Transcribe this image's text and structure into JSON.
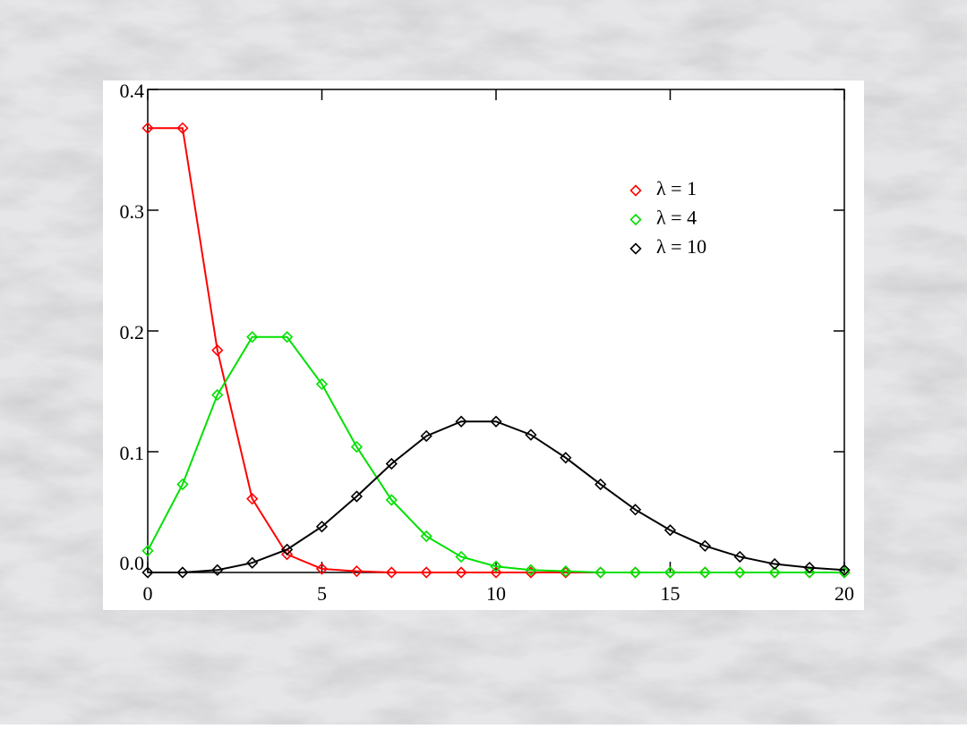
{
  "chart_data": {
    "type": "line",
    "x": [
      0,
      1,
      2,
      3,
      4,
      5,
      6,
      7,
      8,
      9,
      10,
      11,
      12,
      13,
      14,
      15,
      16,
      17,
      18,
      19,
      20
    ],
    "series": [
      {
        "name": "λ = 1",
        "color": "#ff0000",
        "values": [
          0.368,
          0.368,
          0.184,
          0.061,
          0.015,
          0.003,
          0.001,
          0,
          0,
          0,
          0,
          0,
          0,
          0,
          0,
          0,
          0,
          0,
          0,
          0,
          0
        ]
      },
      {
        "name": "λ = 4",
        "color": "#00e000",
        "values": [
          0.018,
          0.073,
          0.147,
          0.195,
          0.195,
          0.156,
          0.104,
          0.06,
          0.03,
          0.013,
          0.005,
          0.002,
          0.001,
          0,
          0,
          0,
          0,
          0,
          0,
          0,
          0
        ]
      },
      {
        "name": "λ = 10",
        "color": "#000000",
        "values": [
          0,
          0,
          0.002,
          0.008,
          0.019,
          0.038,
          0.063,
          0.09,
          0.113,
          0.125,
          0.125,
          0.114,
          0.095,
          0.073,
          0.052,
          0.035,
          0.022,
          0.013,
          0.007,
          0.004,
          0.002
        ]
      }
    ],
    "xlim": [
      0,
      20
    ],
    "xticks": [
      0,
      5,
      10,
      15,
      20
    ],
    "ylim": [
      0,
      0.4
    ],
    "yticks": [
      {
        "value": 0,
        "label": "0.0"
      },
      0.1,
      0.2,
      0.3,
      0.4
    ],
    "legend": "upper-right"
  }
}
